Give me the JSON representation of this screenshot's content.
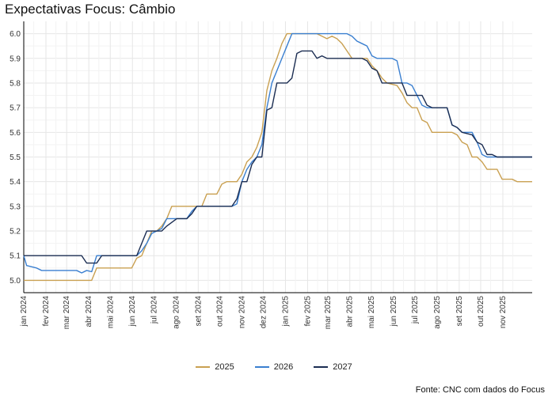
{
  "chart_data": {
    "type": "line",
    "title": "Expectativas Focus: Câmbio",
    "xlabel": "",
    "ylabel": "",
    "ylim": [
      4.95,
      6.05
    ],
    "yticks": [
      "5.0",
      "5.1",
      "5.2",
      "5.3",
      "5.4",
      "5.5",
      "5.6",
      "5.7",
      "5.8",
      "5.9",
      "6.0"
    ],
    "xticks": [
      "jan 2024",
      "fev 2024",
      "mar 2024",
      "abr 2024",
      "mai 2024",
      "jun 2024",
      "jul 2024",
      "ago 2024",
      "set 2024",
      "out 2024",
      "nov 2024",
      "dez 2024",
      "jan 2025",
      "fev 2025",
      "mar 2025",
      "abr 2025",
      "mai 2025",
      "jun 2025",
      "jul 2025",
      "ago 2025",
      "set 2025",
      "out 2025",
      "nov 2025"
    ],
    "grid": true,
    "legend_position": "bottom",
    "series": [
      {
        "name": "2025",
        "color": "#c9a051",
        "points": [
          [
            "2024-01-01",
            5.0
          ],
          [
            "2024-01-05",
            5.0
          ],
          [
            "2024-04-05",
            5.0
          ],
          [
            "2024-04-12",
            5.05
          ],
          [
            "2024-05-31",
            5.05
          ],
          [
            "2024-06-07",
            5.09
          ],
          [
            "2024-06-14",
            5.1
          ],
          [
            "2024-06-21",
            5.15
          ],
          [
            "2024-06-28",
            5.2
          ],
          [
            "2024-07-05",
            5.2
          ],
          [
            "2024-07-12",
            5.22
          ],
          [
            "2024-07-19",
            5.25
          ],
          [
            "2024-07-26",
            5.3
          ],
          [
            "2024-08-30",
            5.3
          ],
          [
            "2024-09-06",
            5.3
          ],
          [
            "2024-09-13",
            5.35
          ],
          [
            "2024-09-27",
            5.35
          ],
          [
            "2024-10-04",
            5.39
          ],
          [
            "2024-10-11",
            5.4
          ],
          [
            "2024-10-25",
            5.4
          ],
          [
            "2024-11-01",
            5.43
          ],
          [
            "2024-11-08",
            5.48
          ],
          [
            "2024-11-15",
            5.5
          ],
          [
            "2024-11-22",
            5.54
          ],
          [
            "2024-11-29",
            5.6
          ],
          [
            "2024-12-06",
            5.77
          ],
          [
            "2024-12-13",
            5.85
          ],
          [
            "2024-12-20",
            5.9
          ],
          [
            "2024-12-27",
            5.96
          ],
          [
            "2025-01-03",
            6.0
          ],
          [
            "2025-02-14",
            6.0
          ],
          [
            "2025-02-21",
            5.99
          ],
          [
            "2025-02-28",
            5.98
          ],
          [
            "2025-03-07",
            5.99
          ],
          [
            "2025-03-14",
            5.98
          ],
          [
            "2025-03-21",
            5.96
          ],
          [
            "2025-03-28",
            5.93
          ],
          [
            "2025-04-04",
            5.9
          ],
          [
            "2025-04-25",
            5.9
          ],
          [
            "2025-05-02",
            5.87
          ],
          [
            "2025-05-09",
            5.85
          ],
          [
            "2025-05-16",
            5.82
          ],
          [
            "2025-05-23",
            5.8
          ],
          [
            "2025-06-06",
            5.79
          ],
          [
            "2025-06-13",
            5.76
          ],
          [
            "2025-06-20",
            5.72
          ],
          [
            "2025-06-27",
            5.7
          ],
          [
            "2025-07-04",
            5.7
          ],
          [
            "2025-07-11",
            5.65
          ],
          [
            "2025-07-18",
            5.64
          ],
          [
            "2025-07-25",
            5.6
          ],
          [
            "2025-08-22",
            5.6
          ],
          [
            "2025-08-29",
            5.59
          ],
          [
            "2025-09-05",
            5.56
          ],
          [
            "2025-09-12",
            5.55
          ],
          [
            "2025-09-19",
            5.5
          ],
          [
            "2025-09-26",
            5.5
          ],
          [
            "2025-10-03",
            5.48
          ],
          [
            "2025-10-10",
            5.45
          ],
          [
            "2025-10-24",
            5.45
          ],
          [
            "2025-10-31",
            5.41
          ],
          [
            "2025-11-14",
            5.41
          ],
          [
            "2025-11-21",
            5.4
          ],
          [
            "2025-12-12",
            5.4
          ]
        ]
      },
      {
        "name": "2026",
        "color": "#3a7fd0",
        "points": [
          [
            "2024-01-01",
            5.1
          ],
          [
            "2024-01-05",
            5.06
          ],
          [
            "2024-01-19",
            5.05
          ],
          [
            "2024-01-26",
            5.04
          ],
          [
            "2024-02-02",
            5.04
          ],
          [
            "2024-02-09",
            5.04
          ],
          [
            "2024-03-15",
            5.04
          ],
          [
            "2024-03-22",
            5.03
          ],
          [
            "2024-03-29",
            5.04
          ],
          [
            "2024-04-05",
            5.035
          ],
          [
            "2024-04-12",
            5.1
          ],
          [
            "2024-06-07",
            5.1
          ],
          [
            "2024-06-14",
            5.12
          ],
          [
            "2024-06-21",
            5.15
          ],
          [
            "2024-06-28",
            5.19
          ],
          [
            "2024-07-05",
            5.2
          ],
          [
            "2024-07-12",
            5.21
          ],
          [
            "2024-07-19",
            5.25
          ],
          [
            "2024-08-02",
            5.25
          ],
          [
            "2024-08-16",
            5.25
          ],
          [
            "2024-08-23",
            5.28
          ],
          [
            "2024-08-30",
            5.3
          ],
          [
            "2024-10-18",
            5.3
          ],
          [
            "2024-10-25",
            5.31
          ],
          [
            "2024-11-01",
            5.4
          ],
          [
            "2024-11-08",
            5.45
          ],
          [
            "2024-11-15",
            5.48
          ],
          [
            "2024-11-22",
            5.5
          ],
          [
            "2024-11-29",
            5.55
          ],
          [
            "2024-12-06",
            5.7
          ],
          [
            "2024-12-13",
            5.8
          ],
          [
            "2024-12-20",
            5.85
          ],
          [
            "2024-12-27",
            5.9
          ],
          [
            "2025-01-03",
            5.95
          ],
          [
            "2025-01-10",
            6.0
          ],
          [
            "2025-03-28",
            6.0
          ],
          [
            "2025-04-04",
            5.99
          ],
          [
            "2025-04-11",
            5.97
          ],
          [
            "2025-04-18",
            5.96
          ],
          [
            "2025-04-25",
            5.95
          ],
          [
            "2025-05-02",
            5.91
          ],
          [
            "2025-05-09",
            5.9
          ],
          [
            "2025-05-30",
            5.9
          ],
          [
            "2025-06-06",
            5.89
          ],
          [
            "2025-06-13",
            5.8
          ],
          [
            "2025-06-20",
            5.8
          ],
          [
            "2025-06-27",
            5.79
          ],
          [
            "2025-07-04",
            5.75
          ],
          [
            "2025-07-11",
            5.71
          ],
          [
            "2025-07-18",
            5.7
          ],
          [
            "2025-08-15",
            5.7
          ],
          [
            "2025-08-22",
            5.63
          ],
          [
            "2025-08-29",
            5.62
          ],
          [
            "2025-09-05",
            5.6
          ],
          [
            "2025-09-19",
            5.6
          ],
          [
            "2025-09-26",
            5.56
          ],
          [
            "2025-10-03",
            5.51
          ],
          [
            "2025-10-10",
            5.5
          ],
          [
            "2025-10-24",
            5.5
          ],
          [
            "2025-10-31",
            5.5
          ],
          [
            "2025-12-12",
            5.5
          ]
        ]
      },
      {
        "name": "2027",
        "color": "#1b2d52",
        "points": [
          [
            "2024-01-01",
            5.1
          ],
          [
            "2024-03-22",
            5.1
          ],
          [
            "2024-03-29",
            5.07
          ],
          [
            "2024-04-12",
            5.07
          ],
          [
            "2024-04-19",
            5.1
          ],
          [
            "2024-06-07",
            5.1
          ],
          [
            "2024-06-14",
            5.15
          ],
          [
            "2024-06-21",
            5.2
          ],
          [
            "2024-07-12",
            5.2
          ],
          [
            "2024-07-19",
            5.22
          ],
          [
            "2024-08-02",
            5.25
          ],
          [
            "2024-08-16",
            5.25
          ],
          [
            "2024-08-23",
            5.27
          ],
          [
            "2024-08-30",
            5.3
          ],
          [
            "2024-10-18",
            5.3
          ],
          [
            "2024-10-25",
            5.33
          ],
          [
            "2024-11-01",
            5.4
          ],
          [
            "2024-11-08",
            5.4
          ],
          [
            "2024-11-15",
            5.47
          ],
          [
            "2024-11-22",
            5.5
          ],
          [
            "2024-11-29",
            5.5
          ],
          [
            "2024-12-06",
            5.69
          ],
          [
            "2024-12-13",
            5.7
          ],
          [
            "2024-12-20",
            5.8
          ],
          [
            "2024-12-27",
            5.8
          ],
          [
            "2025-01-03",
            5.8
          ],
          [
            "2025-01-10",
            5.82
          ],
          [
            "2025-01-17",
            5.92
          ],
          [
            "2025-01-24",
            5.93
          ],
          [
            "2025-02-07",
            5.93
          ],
          [
            "2025-02-14",
            5.9
          ],
          [
            "2025-02-21",
            5.91
          ],
          [
            "2025-02-28",
            5.9
          ],
          [
            "2025-04-18",
            5.9
          ],
          [
            "2025-04-25",
            5.89
          ],
          [
            "2025-05-02",
            5.86
          ],
          [
            "2025-05-09",
            5.85
          ],
          [
            "2025-05-16",
            5.8
          ],
          [
            "2025-06-13",
            5.8
          ],
          [
            "2025-06-20",
            5.75
          ],
          [
            "2025-07-11",
            5.75
          ],
          [
            "2025-07-18",
            5.71
          ],
          [
            "2025-07-25",
            5.7
          ],
          [
            "2025-08-15",
            5.7
          ],
          [
            "2025-08-22",
            5.63
          ],
          [
            "2025-08-29",
            5.62
          ],
          [
            "2025-09-05",
            5.6
          ],
          [
            "2025-09-19",
            5.59
          ],
          [
            "2025-09-26",
            5.56
          ],
          [
            "2025-10-03",
            5.55
          ],
          [
            "2025-10-10",
            5.51
          ],
          [
            "2025-10-17",
            5.51
          ],
          [
            "2025-10-24",
            5.5
          ],
          [
            "2025-12-12",
            5.5
          ]
        ]
      }
    ]
  },
  "source": "Fonte: CNC com dados do Focus"
}
